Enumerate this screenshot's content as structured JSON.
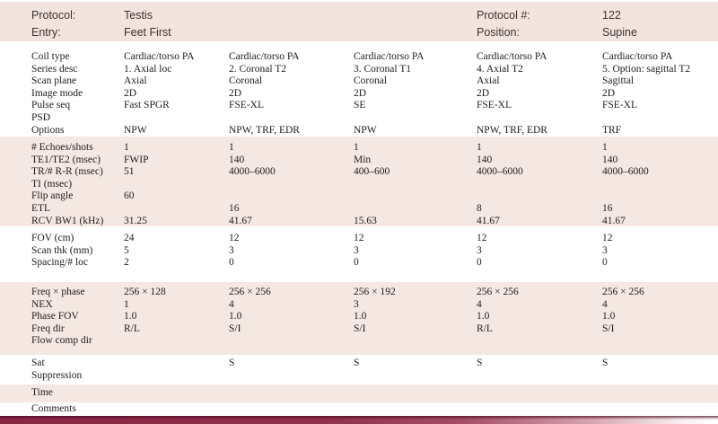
{
  "header": {
    "protocol_label": "Protocol:",
    "protocol_value": "Testis",
    "entry_label": "Entry:",
    "entry_value": "Feet First",
    "protocol_number_label": "Protocol #:",
    "protocol_number_value": "122",
    "position_label": "Position:",
    "position_value": "Supine"
  },
  "colors": {
    "band_pink": "#f5e7e1",
    "header_pink": "#f4e4de",
    "accent_maroon": "#8a2741"
  },
  "table": {
    "sections": [
      {
        "tone": "white",
        "rows": [
          {
            "label": "Coil type",
            "values": [
              "Cardiac/torso PA",
              "Cardiac/torso PA",
              "Cardiac/torso PA",
              "Cardiac/torso PA",
              "Cardiac/torso PA"
            ]
          },
          {
            "label": "Series desc",
            "values": [
              "1. Axial loc",
              "2. Coronal T2",
              "3. Coronal T1",
              "4. Axial T2",
              "5. Option: sagittal T2"
            ]
          },
          {
            "label": "Scan plane",
            "values": [
              "Axial",
              "Coronal",
              "Coronal",
              "Axial",
              "Sagittal"
            ]
          },
          {
            "label": "Image mode",
            "values": [
              "2D",
              "2D",
              "2D",
              "2D",
              "2D"
            ]
          },
          {
            "label": "Pulse seq",
            "values": [
              "Fast SPGR",
              "FSE-XL",
              "SE",
              "FSE-XL",
              "FSE-XL"
            ]
          },
          {
            "label": "PSD",
            "values": [
              "",
              "",
              "",
              "",
              ""
            ]
          },
          {
            "label": "Options",
            "values": [
              "NPW",
              "NPW, TRF, EDR",
              "NPW",
              "NPW, TRF, EDR",
              "TRF"
            ]
          }
        ]
      },
      {
        "tone": "pink",
        "rows": [
          {
            "label": "# Echoes/shots",
            "values": [
              "1",
              "1",
              "1",
              "1",
              "1"
            ]
          },
          {
            "label": "TE1/TE2 (msec)",
            "values": [
              "FWIP",
              "140",
              "Min",
              "140",
              "140"
            ]
          },
          {
            "label": "TR/# R-R (msec)",
            "values": [
              "51",
              "4000–6000",
              "400–600",
              "4000–6000",
              "4000–6000"
            ]
          },
          {
            "label": "TI (msec)",
            "values": [
              "",
              "",
              "",
              "",
              ""
            ]
          },
          {
            "label": "Flip angle",
            "values": [
              "60",
              "",
              "",
              "",
              ""
            ]
          },
          {
            "label": "ETL",
            "values": [
              "",
              "16",
              "",
              "8",
              "16"
            ]
          },
          {
            "label": "RCV BW1 (kHz)",
            "values": [
              "31.25",
              "41.67",
              "15.63",
              "41.67",
              "41.67"
            ]
          }
        ]
      },
      {
        "tone": "white",
        "rows": [
          {
            "label": "FOV (cm)",
            "values": [
              "24",
              "12",
              "12",
              "12",
              "12"
            ]
          },
          {
            "label": "Scan thk (mm)",
            "values": [
              "5",
              "3",
              "3",
              "3",
              "3"
            ]
          },
          {
            "label": "Spacing/# loc",
            "values": [
              "2",
              "0",
              "0",
              "0",
              "0"
            ]
          }
        ]
      },
      {
        "tone": "pink",
        "rows": [
          {
            "label": "Freq × phase",
            "values": [
              "256 × 128",
              "256 × 256",
              "256 × 192",
              "256 × 256",
              "256 × 256"
            ]
          },
          {
            "label": "NEX",
            "values": [
              "1",
              "4",
              "3",
              "4",
              "4"
            ]
          },
          {
            "label": "Phase FOV",
            "values": [
              "1.0",
              "1.0",
              "1.0",
              "1.0",
              "1.0"
            ]
          },
          {
            "label": "Freq dir",
            "values": [
              "R/L",
              "S/I",
              "S/I",
              "R/L",
              "S/I"
            ]
          },
          {
            "label": "Flow comp dir",
            "values": [
              "",
              "",
              "",
              "",
              ""
            ]
          }
        ]
      },
      {
        "tone": "white",
        "rows": [
          {
            "label": "Sat\nSuppression",
            "values": [
              "",
              "S",
              "S",
              "S",
              "S"
            ]
          }
        ]
      },
      {
        "tone": "pink",
        "rows": [
          {
            "label": "Time",
            "values": [
              "",
              "",
              "",
              "",
              ""
            ]
          }
        ]
      },
      {
        "tone": "white",
        "rows": [
          {
            "label": "Comments",
            "values": [
              "",
              "",
              "",
              "",
              ""
            ]
          }
        ]
      }
    ]
  }
}
